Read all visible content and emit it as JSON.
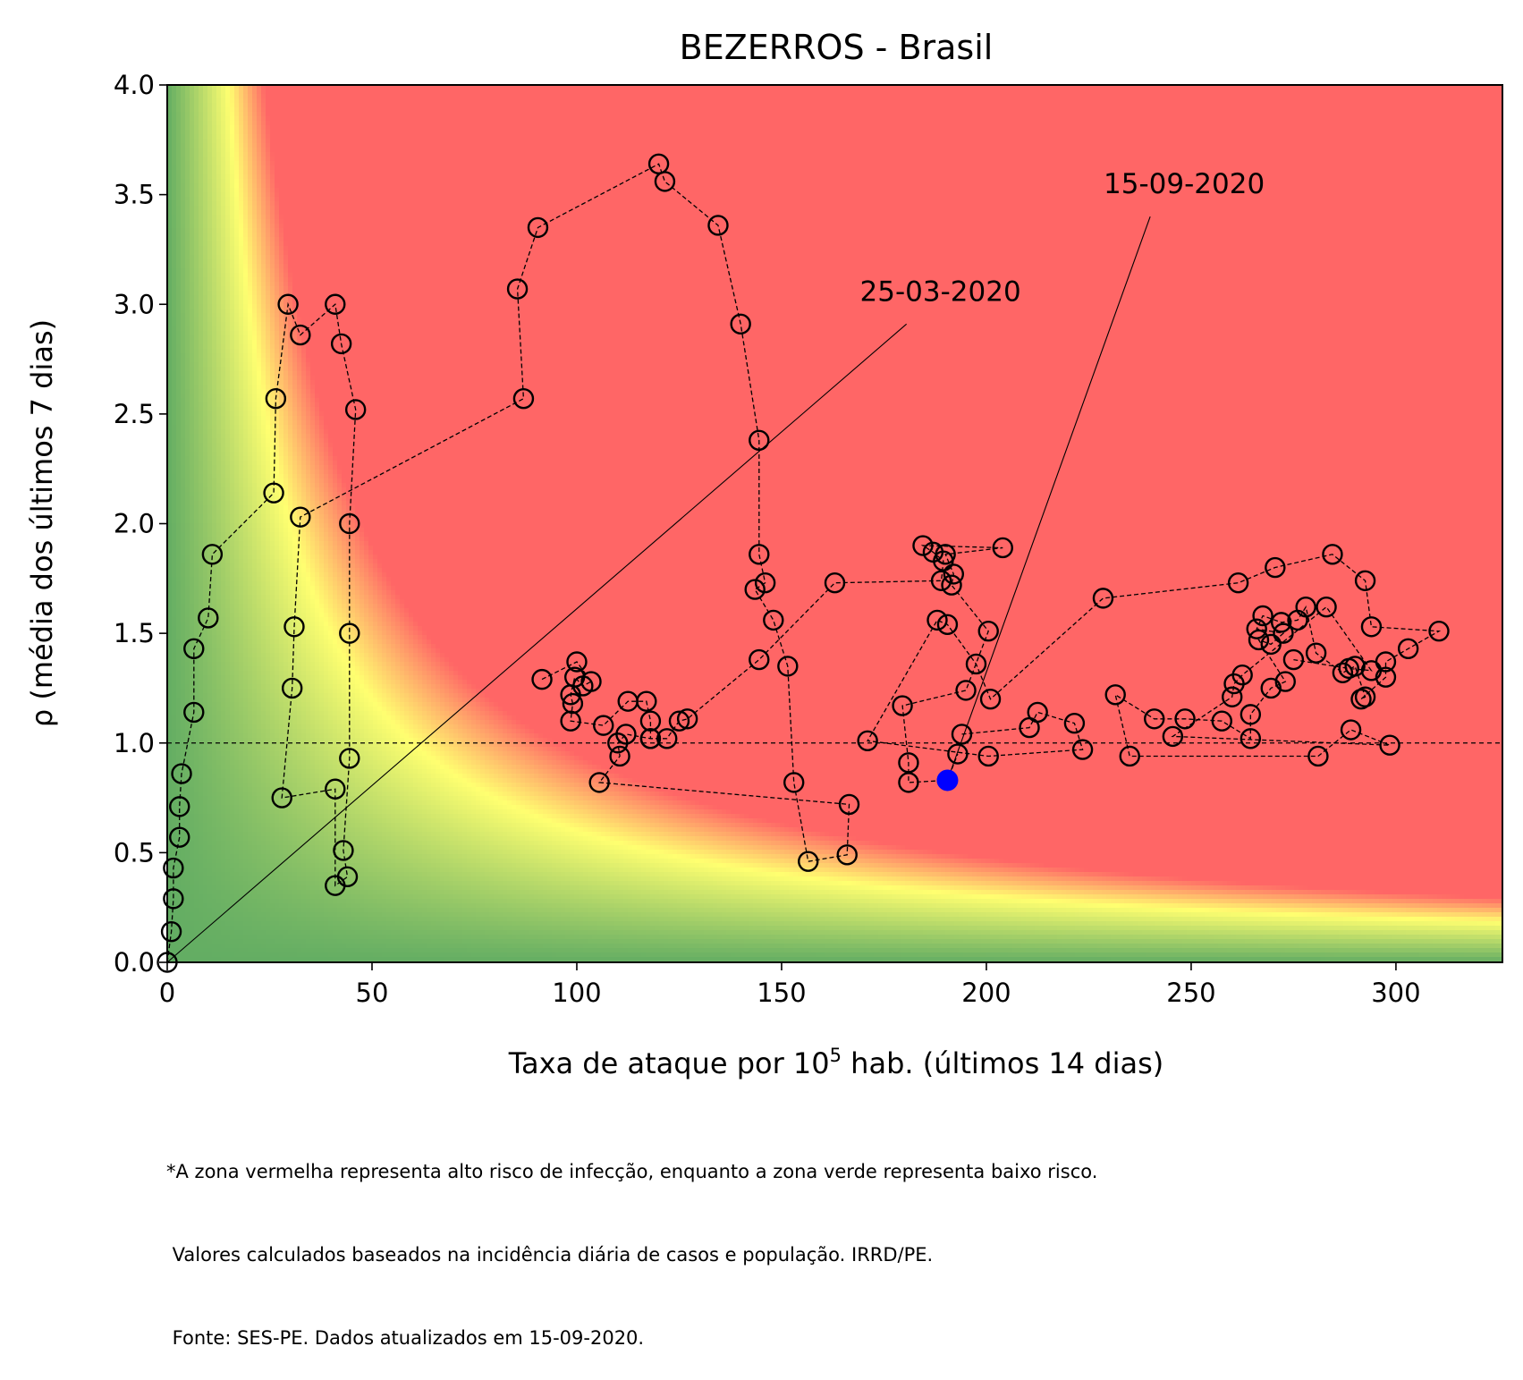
{
  "chart_data": {
    "type": "scatter",
    "title": "BEZERROS - Brasil",
    "xlabel_prefix": "Taxa de ataque por 10",
    "xlabel_sup": "5",
    "xlabel_suffix": " hab. (últimos 14 dias)",
    "ylabel": "ρ (média dos últimos 7 dias)",
    "xlim": [
      0,
      326
    ],
    "ylim": [
      0,
      4.0
    ],
    "xticks": [
      0,
      50,
      100,
      150,
      200,
      250,
      300
    ],
    "yticks": [
      0.0,
      0.5,
      1.0,
      1.5,
      2.0,
      2.5,
      3.0,
      3.5,
      4.0
    ],
    "xtick_labels": [
      "0",
      "50",
      "100",
      "150",
      "200",
      "250",
      "300"
    ],
    "ytick_labels": [
      "0.0",
      "0.5",
      "1.0",
      "1.5",
      "2.0",
      "2.5",
      "3.0",
      "3.5",
      "4.0"
    ],
    "reference_line_y": 1.0,
    "grid": false,
    "background_colors": {
      "low": "#63ad63",
      "mid": "#ffff70",
      "high": "#ff6666"
    },
    "marker_color": "#000000",
    "current_point_color": "#0000ff",
    "series": [
      {
        "points": [
          [
            0.0,
            0.0
          ],
          [
            1.0,
            0.14
          ],
          [
            1.5,
            0.29
          ],
          [
            1.5,
            0.43
          ],
          [
            3.0,
            0.57
          ],
          [
            3.0,
            0.71
          ],
          [
            3.5,
            0.86
          ],
          [
            6.5,
            1.14
          ],
          [
            6.5,
            1.43
          ],
          [
            10.0,
            1.57
          ],
          [
            11.0,
            1.86
          ],
          [
            26.0,
            2.14
          ],
          [
            26.5,
            2.57
          ],
          [
            29.5,
            3.0
          ],
          [
            32.5,
            2.86
          ],
          [
            41.0,
            3.0
          ],
          [
            42.5,
            2.82
          ],
          [
            46.0,
            2.52
          ],
          [
            44.5,
            2.0
          ],
          [
            44.5,
            1.5
          ],
          [
            44.5,
            0.93
          ],
          [
            43.0,
            0.51
          ],
          [
            44.0,
            0.39
          ],
          [
            41.0,
            0.35
          ],
          [
            41.0,
            0.79
          ],
          [
            28.0,
            0.75
          ],
          [
            30.5,
            1.25
          ],
          [
            31.0,
            1.53
          ],
          [
            32.5,
            2.03
          ],
          [
            87.0,
            2.57
          ],
          [
            85.5,
            3.07
          ],
          [
            90.5,
            3.35
          ],
          [
            120.0,
            3.64
          ],
          [
            121.5,
            3.56
          ],
          [
            134.5,
            3.36
          ],
          [
            140.0,
            2.91
          ],
          [
            144.5,
            2.38
          ],
          [
            144.5,
            1.86
          ],
          [
            146.0,
            1.73
          ],
          [
            143.5,
            1.7
          ],
          [
            148.0,
            1.56
          ],
          [
            151.5,
            1.35
          ],
          [
            153.0,
            0.82
          ],
          [
            156.5,
            0.46
          ],
          [
            166.0,
            0.49
          ],
          [
            166.5,
            0.72
          ],
          [
            105.5,
            0.82
          ],
          [
            110.5,
            0.94
          ],
          [
            110.0,
            1.0
          ],
          [
            112.0,
            1.04
          ],
          [
            118.0,
            1.02
          ],
          [
            122.0,
            1.02
          ],
          [
            125.0,
            1.1
          ],
          [
            127.0,
            1.11
          ],
          [
            144.5,
            1.38
          ],
          [
            163.0,
            1.73
          ],
          [
            189.0,
            1.74
          ],
          [
            189.5,
            1.83
          ],
          [
            187.0,
            1.87
          ],
          [
            184.5,
            1.9
          ],
          [
            204.0,
            1.89
          ],
          [
            190.0,
            1.86
          ],
          [
            192.0,
            1.77
          ],
          [
            191.5,
            1.72
          ],
          [
            200.5,
            1.51
          ],
          [
            195.0,
            1.24
          ],
          [
            179.5,
            1.17
          ],
          [
            181.0,
            0.91
          ],
          [
            181.0,
            0.82
          ],
          [
            190.5,
            0.83
          ],
          [
            193.0,
            0.95
          ]
        ]
      },
      {
        "points": [
          [
            91.5,
            1.29
          ],
          [
            100.0,
            1.37
          ],
          [
            103.5,
            1.28
          ],
          [
            101.5,
            1.26
          ],
          [
            99.5,
            1.3
          ],
          [
            98.5,
            1.22
          ],
          [
            99.0,
            1.18
          ],
          [
            98.5,
            1.1
          ],
          [
            106.5,
            1.08
          ],
          [
            112.5,
            1.19
          ],
          [
            117.0,
            1.19
          ],
          [
            118.0,
            1.1
          ],
          [
            118.0,
            1.02
          ]
        ]
      },
      {
        "points": [
          [
            194.0,
            1.04
          ],
          [
            210.5,
            1.07
          ],
          [
            212.5,
            1.14
          ],
          [
            221.5,
            1.09
          ],
          [
            223.5,
            0.97
          ],
          [
            200.5,
            0.94
          ],
          [
            171.0,
            1.01
          ],
          [
            188.0,
            1.56
          ],
          [
            190.5,
            1.54
          ],
          [
            197.5,
            1.36
          ],
          [
            201.0,
            1.2
          ],
          [
            228.5,
            1.66
          ],
          [
            261.5,
            1.73
          ],
          [
            270.5,
            1.8
          ],
          [
            284.5,
            1.86
          ],
          [
            292.5,
            1.74
          ],
          [
            294.0,
            1.53
          ],
          [
            310.5,
            1.51
          ],
          [
            303.0,
            1.43
          ],
          [
            297.5,
            1.37
          ],
          [
            297.5,
            1.3
          ],
          [
            291.5,
            1.2
          ],
          [
            292.5,
            1.21
          ],
          [
            290.0,
            1.35
          ],
          [
            287.0,
            1.32
          ],
          [
            280.5,
            1.41
          ],
          [
            278.0,
            1.62
          ],
          [
            276.0,
            1.56
          ],
          [
            272.0,
            1.55
          ],
          [
            267.5,
            1.58
          ],
          [
            266.0,
            1.52
          ],
          [
            272.5,
            1.5
          ],
          [
            269.5,
            1.45
          ],
          [
            266.5,
            1.47
          ],
          [
            273.0,
            1.28
          ],
          [
            269.5,
            1.25
          ],
          [
            264.5,
            1.13
          ],
          [
            264.5,
            1.02
          ],
          [
            257.5,
            1.1
          ],
          [
            248.5,
            1.11
          ],
          [
            241.0,
            1.11
          ],
          [
            231.5,
            1.22
          ],
          [
            235.0,
            0.94
          ],
          [
            281.0,
            0.94
          ],
          [
            289.0,
            1.06
          ],
          [
            298.5,
            0.99
          ],
          [
            245.5,
            1.03
          ],
          [
            260.0,
            1.21
          ],
          [
            260.5,
            1.27
          ],
          [
            262.5,
            1.31
          ],
          [
            283.0,
            1.62
          ],
          [
            294.0,
            1.33
          ],
          [
            288.5,
            1.34
          ],
          [
            275.0,
            1.38
          ]
        ]
      }
    ],
    "current_point": [
      190.5,
      0.83
    ],
    "annotations": [
      {
        "text": "25-03-2020",
        "xy": [
          0.0,
          0.0
        ],
        "text_anchor": [
          180.5,
          2.91
        ]
      },
      {
        "text": "15-09-2020",
        "xy": [
          190.5,
          0.83
        ],
        "text_anchor": [
          240.0,
          3.4
        ]
      }
    ]
  },
  "footnote": {
    "line1": "*A zona vermelha representa alto risco de infecção, enquanto a zona verde representa baixo risco.",
    "line2": " Valores calculados baseados na incidência diária de casos e população. IRRD/PE.",
    "line3": " Fonte: SES-PE. Dados atualizados em 15-09-2020."
  }
}
